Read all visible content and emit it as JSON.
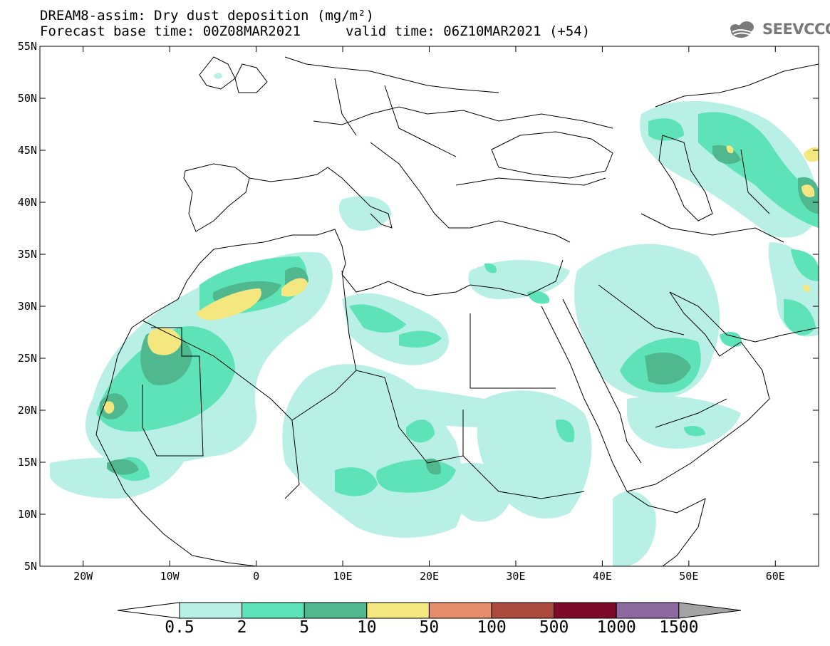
{
  "header": {
    "title_line1": "DREAM8-assim: Dry dust deposition (mg/m²)",
    "title_line2": "Forecast base time: 00Z08MAR2021",
    "valid_time": "valid time: 06Z10MAR2021 (+54)",
    "logo_text": "SEEVCCC",
    "logo_icon": "cloud-logo-icon"
  },
  "axes": {
    "lat_labels": [
      "55N",
      "50N",
      "45N",
      "40N",
      "35N",
      "30N",
      "25N",
      "20N",
      "15N",
      "10N",
      "5N"
    ],
    "lon_labels": [
      "20W",
      "10W",
      "0",
      "10E",
      "20E",
      "30E",
      "40E",
      "50E",
      "60E"
    ]
  },
  "colorbar": {
    "labels": [
      "0.5",
      "2",
      "5",
      "10",
      "50",
      "100",
      "500",
      "1000",
      "1500"
    ],
    "colors": [
      "#b9f0e6",
      "#5ee3b9",
      "#50b88f",
      "#f4e77f",
      "#e58d6a",
      "#aa4b3e",
      "#7e0a2a",
      "#8c6aa0",
      "#a3a3a3"
    ]
  },
  "palette": {
    "coast": "#000000",
    "level1": "#b9f0e6",
    "level2": "#5ee3b9",
    "level3": "#50b88f",
    "level4": "#f4e77f"
  }
}
